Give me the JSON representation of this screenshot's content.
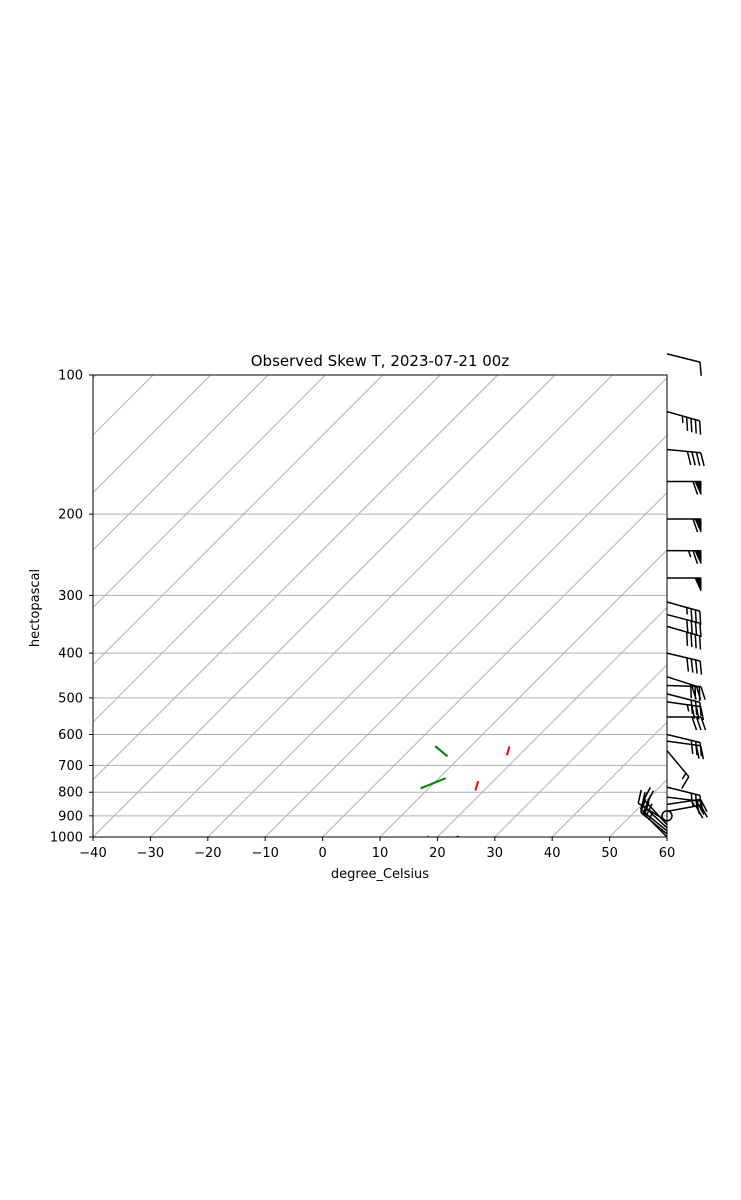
{
  "chart_data": {
    "type": "line",
    "title": "Observed Skew T, 2023-07-21 00z",
    "xlabel": "degree_Celsius",
    "ylabel": "hectopascal",
    "xlim": [
      -40,
      60
    ],
    "ylim": [
      1000,
      100
    ],
    "y_scale": "log",
    "x_ticks": [
      "−40",
      "−30",
      "−20",
      "−10",
      "0",
      "10",
      "20",
      "30",
      "40",
      "50",
      "60"
    ],
    "x_tick_values": [
      -40,
      -30,
      -20,
      -10,
      0,
      10,
      20,
      30,
      40,
      50,
      60
    ],
    "y_ticks": [
      "100",
      "200",
      "300",
      "400",
      "500",
      "600",
      "700",
      "800",
      "900",
      "1000"
    ],
    "y_tick_values": [
      100,
      200,
      300,
      400,
      500,
      600,
      700,
      800,
      900,
      1000
    ],
    "grid": true,
    "skewed_isotherms": true,
    "series": [
      {
        "color": "#ff0000",
        "segments": [
          [
            {
              "t": 23.3,
              "p": 1000
            },
            {
              "t": 23.7,
              "p": 998
            }
          ],
          [
            {
              "t": 18.5,
              "p": 793
            },
            {
              "t": 17.4,
              "p": 757
            }
          ],
          [
            {
              "t": 17.9,
              "p": 666
            },
            {
              "t": 16.8,
              "p": 637
            }
          ]
        ]
      },
      {
        "color": "#008000",
        "segments": [
          [
            {
              "t": 18.2,
              "p": 999
            },
            {
              "t": 18.4,
              "p": 998
            }
          ],
          [
            {
              "t": 8.6,
              "p": 785
            },
            {
              "t": 11.2,
              "p": 746
            }
          ],
          [
            {
              "t": 7.7,
              "p": 669
            },
            {
              "t": 3.8,
              "p": 636
            }
          ]
        ]
      }
    ],
    "wind_barbs": [
      {
        "p": 1000,
        "u": 16,
        "v": -16
      },
      {
        "p": 985,
        "u": 17,
        "v": -14
      },
      {
        "p": 970,
        "u": 16,
        "v": -13
      },
      {
        "p": 955,
        "u": 13,
        "v": -12
      },
      {
        "p": 940,
        "u": 12,
        "v": -13
      },
      {
        "p": 925,
        "u": 16,
        "v": -10
      },
      {
        "p": 900,
        "u": 0,
        "v": 0
      },
      {
        "p": 880,
        "u": -22,
        "v": -4
      },
      {
        "p": 850,
        "u": -27,
        "v": -4
      },
      {
        "p": 820,
        "u": -25,
        "v": 3
      },
      {
        "p": 780,
        "u": -24,
        "v": 6
      },
      {
        "p": 650,
        "u": -10,
        "v": 12
      },
      {
        "p": 620,
        "u": -22,
        "v": 3
      },
      {
        "p": 600,
        "u": -29,
        "v": 7
      },
      {
        "p": 550,
        "u": -32,
        "v": 0
      },
      {
        "p": 510,
        "u": -36,
        "v": 5
      },
      {
        "p": 490,
        "u": -31,
        "v": 8
      },
      {
        "p": 470,
        "u": -32,
        "v": 1
      },
      {
        "p": 450,
        "u": -28,
        "v": 9
      },
      {
        "p": 400,
        "u": -38,
        "v": 9
      },
      {
        "p": 350,
        "u": -38,
        "v": 11
      },
      {
        "p": 330,
        "u": -38,
        "v": 10
      },
      {
        "p": 310,
        "u": -36,
        "v": 10
      },
      {
        "p": 275,
        "u": -50,
        "v": 0
      },
      {
        "p": 240,
        "u": -65,
        "v": 0
      },
      {
        "p": 205,
        "u": -62,
        "v": 0
      },
      {
        "p": 170,
        "u": -62,
        "v": 0
      },
      {
        "p": 145,
        "u": -42,
        "v": 4
      },
      {
        "p": 120,
        "u": -42,
        "v": 12
      },
      {
        "p": 90,
        "u": -8,
        "v": 2
      }
    ]
  }
}
